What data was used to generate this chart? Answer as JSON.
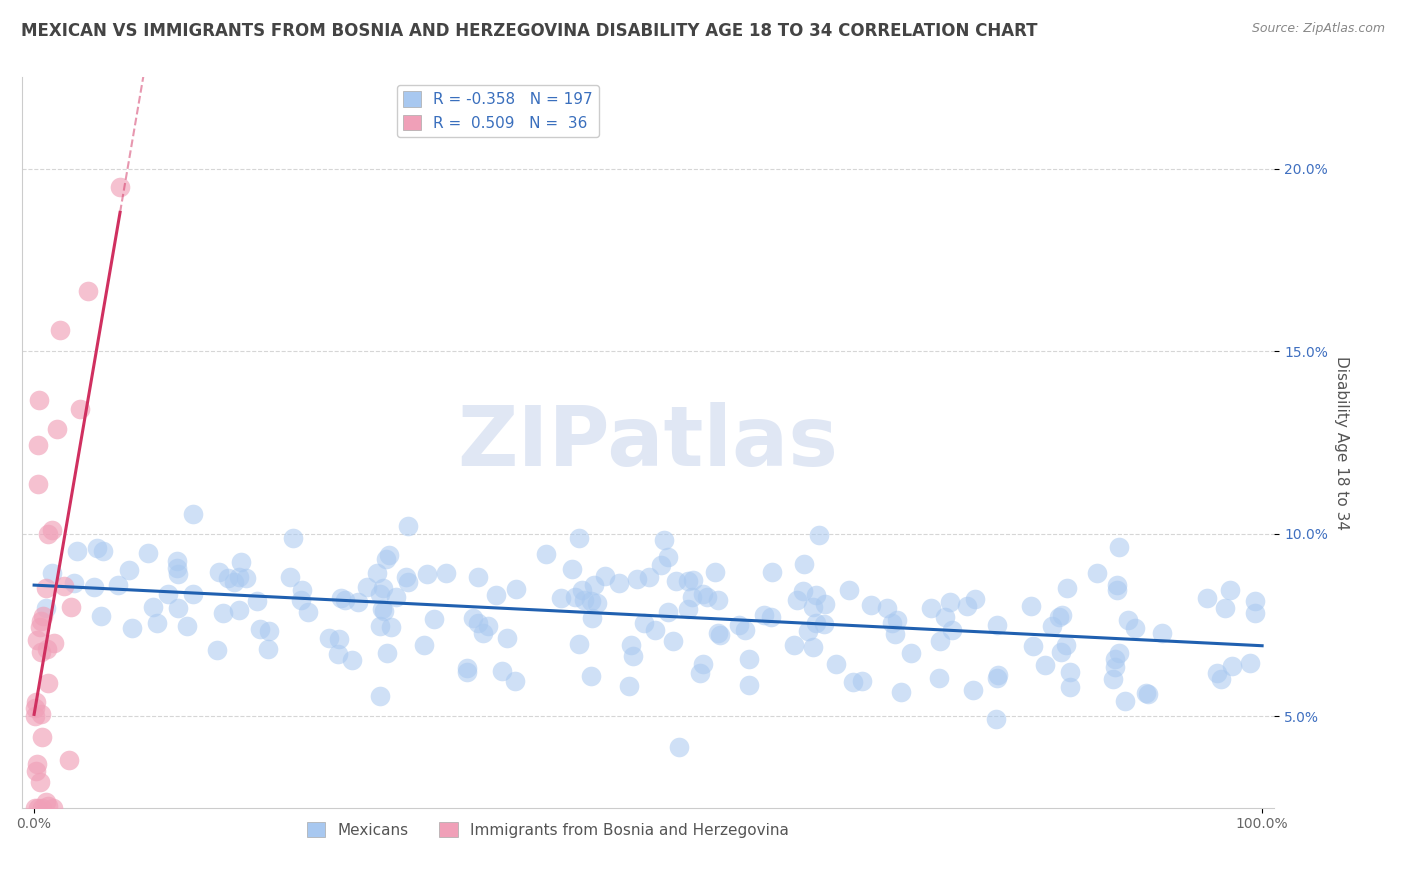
{
  "title": "MEXICAN VS IMMIGRANTS FROM BOSNIA AND HERZEGOVINA DISABILITY AGE 18 TO 34 CORRELATION CHART",
  "source": "Source: ZipAtlas.com",
  "ylabel": "Disability Age 18 to 34",
  "r_mexican": -0.358,
  "n_mexican": 197,
  "r_bosnia": 0.509,
  "n_bosnia": 36,
  "xlim": [
    -0.01,
    1.01
  ],
  "ylim": [
    0.025,
    0.225
  ],
  "yticks": [
    0.05,
    0.1,
    0.15,
    0.2
  ],
  "xticks": [
    0.0,
    1.0
  ],
  "xtick_labels": [
    "0.0%",
    "100.0%"
  ],
  "ytick_labels": [
    "5.0%",
    "10.0%",
    "15.0%",
    "20.0%"
  ],
  "color_mexican": "#a8c8f0",
  "color_bosnia": "#f0a0b8",
  "line_color_mexican": "#2060b0",
  "line_color_bosnia": "#d03060",
  "background_color": "#ffffff",
  "grid_color": "#cccccc",
  "title_color": "#444444",
  "watermark": "ZIPatlas",
  "legend_labels": [
    "Mexicans",
    "Immigrants from Bosnia and Herzegovina"
  ],
  "title_fontsize": 12,
  "axis_label_fontsize": 11,
  "tick_fontsize": 10,
  "legend_fontsize": 11
}
